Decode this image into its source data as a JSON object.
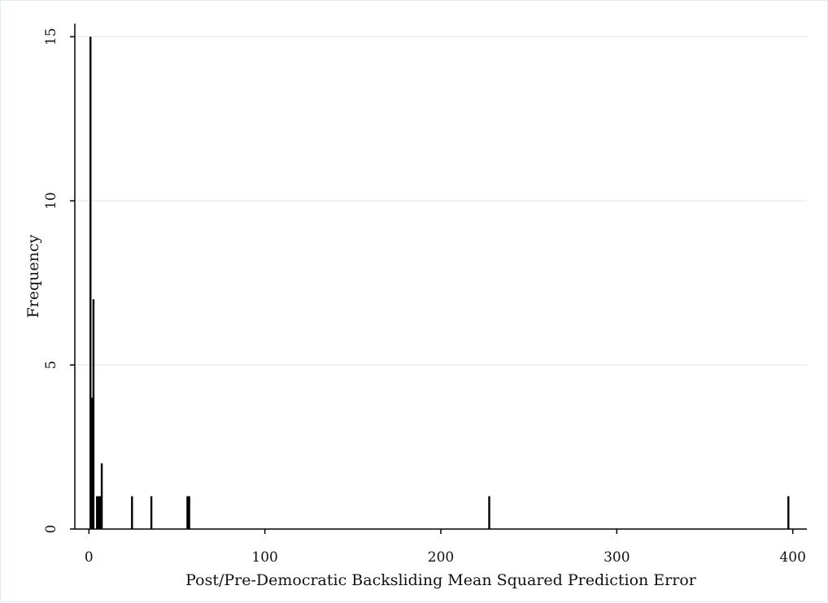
{
  "chart_data": {
    "type": "bar",
    "title": "",
    "xlabel": "Post/Pre-Democratic Backsliding Mean Squared Prediction Error",
    "ylabel": "Frequency",
    "xlim": [
      -8,
      408
    ],
    "ylim": [
      0,
      15.4
    ],
    "xticks": [
      0,
      100,
      200,
      300,
      400
    ],
    "yticks": [
      0,
      5,
      10,
      15
    ],
    "grid": "horizontal",
    "legend": "none",
    "bar_color": "#000000",
    "grid_color": "#eef2f2",
    "bars": [
      {
        "x": 0.9,
        "count": 15
      },
      {
        "x": 1.7,
        "count": 4
      },
      {
        "x": 2.6,
        "count": 7
      },
      {
        "x": 4.6,
        "count": 1
      },
      {
        "x": 5.5,
        "count": 1
      },
      {
        "x": 6.4,
        "count": 1
      },
      {
        "x": 7.3,
        "count": 2
      },
      {
        "x": 24.5,
        "count": 1
      },
      {
        "x": 35.5,
        "count": 1
      },
      {
        "x": 56.0,
        "count": 1
      },
      {
        "x": 57.0,
        "count": 1
      },
      {
        "x": 227.5,
        "count": 1
      },
      {
        "x": 397.5,
        "count": 1
      }
    ]
  }
}
